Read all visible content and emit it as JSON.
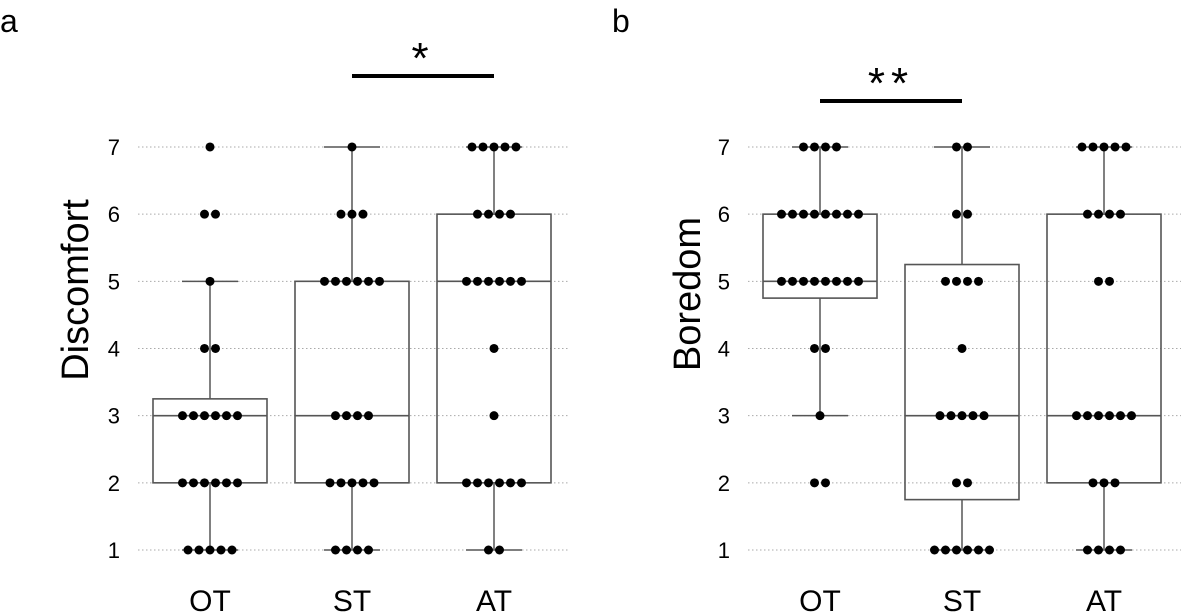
{
  "chart_data": [
    {
      "panel": "a",
      "type": "box",
      "ylabel": "Discomfort",
      "categories": [
        "OT",
        "ST",
        "AT"
      ],
      "ylim": [
        1,
        7
      ],
      "yticks": [
        1,
        2,
        3,
        4,
        5,
        6,
        7
      ],
      "grid": "horizontal dotted",
      "boxes": [
        {
          "category": "OT",
          "whisker_low": 1,
          "q1": 2,
          "median": 3,
          "q3": 3.25,
          "whisker_high": 5
        },
        {
          "category": "ST",
          "whisker_low": 1,
          "q1": 2,
          "median": 3,
          "q3": 5,
          "whisker_high": 7
        },
        {
          "category": "AT",
          "whisker_low": 1,
          "q1": 2,
          "median": 5,
          "q3": 6,
          "whisker_high": 7
        }
      ],
      "points": [
        {
          "category": "OT",
          "values": [
            1,
            1,
            1,
            1,
            1,
            2,
            2,
            2,
            2,
            2,
            2,
            3,
            3,
            3,
            3,
            3,
            3,
            4,
            4,
            5,
            6,
            6,
            7
          ]
        },
        {
          "category": "ST",
          "values": [
            1,
            1,
            1,
            1,
            2,
            2,
            2,
            2,
            2,
            3,
            3,
            3,
            3,
            5,
            5,
            5,
            5,
            5,
            5,
            6,
            6,
            6,
            7
          ]
        },
        {
          "category": "AT",
          "values": [
            1,
            1,
            2,
            2,
            2,
            2,
            2,
            2,
            3,
            4,
            5,
            5,
            5,
            5,
            5,
            5,
            6,
            6,
            6,
            6,
            7,
            7,
            7,
            7,
            7
          ]
        }
      ],
      "significance": [
        {
          "from": "ST",
          "to": "AT",
          "label": "*"
        }
      ]
    },
    {
      "panel": "b",
      "type": "box",
      "ylabel": "Boredom",
      "categories": [
        "OT",
        "ST",
        "AT"
      ],
      "ylim": [
        1,
        7
      ],
      "yticks": [
        1,
        2,
        3,
        4,
        5,
        6,
        7
      ],
      "grid": "horizontal dotted",
      "boxes": [
        {
          "category": "OT",
          "whisker_low": 3,
          "q1": 4.75,
          "median": 5,
          "q3": 6,
          "whisker_high": 7
        },
        {
          "category": "ST",
          "whisker_low": 1,
          "q1": 1.75,
          "median": 3,
          "q3": 5.25,
          "whisker_high": 7
        },
        {
          "category": "AT",
          "whisker_low": 1,
          "q1": 2,
          "median": 3,
          "q3": 6,
          "whisker_high": 7
        }
      ],
      "points": [
        {
          "category": "OT",
          "values": [
            2,
            2,
            3,
            4,
            4,
            5,
            5,
            5,
            5,
            5,
            5,
            5,
            5,
            6,
            6,
            6,
            6,
            6,
            6,
            6,
            6,
            7,
            7,
            7,
            7
          ]
        },
        {
          "category": "ST",
          "values": [
            1,
            1,
            1,
            1,
            1,
            1,
            2,
            2,
            3,
            3,
            3,
            3,
            3,
            4,
            5,
            5,
            5,
            5,
            6,
            6,
            7,
            7
          ]
        },
        {
          "category": "AT",
          "values": [
            1,
            1,
            1,
            1,
            2,
            2,
            2,
            3,
            3,
            3,
            3,
            3,
            3,
            5,
            5,
            6,
            6,
            6,
            6,
            7,
            7,
            7,
            7,
            7
          ]
        }
      ],
      "significance": [
        {
          "from": "OT",
          "to": "ST",
          "label": "**"
        }
      ]
    }
  ]
}
